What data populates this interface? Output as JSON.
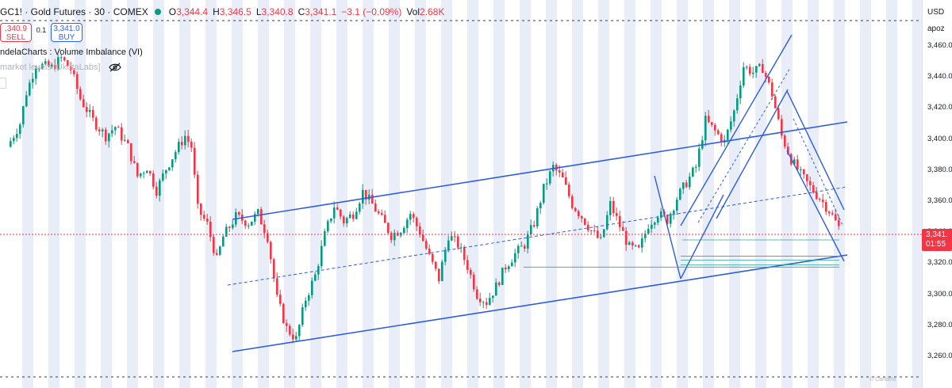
{
  "legend": {
    "symbol": "GC1! · Gold Futures · 30 · COMEX",
    "open_label": "O",
    "open": "3,344.4",
    "high_label": "H",
    "high": "3,346.5",
    "low_label": "L",
    "low": "3,340.8",
    "close_label": "C",
    "close": "3,341.1",
    "change": "−3.1 (−0.09%)",
    "vol_label": "Vol",
    "vol": "2.68K"
  },
  "trade": {
    "sell_price": ",340.9",
    "sell_label": "SELL",
    "spread": "0.1",
    "buy_price": "3,341.0",
    "buy_label": "BUY"
  },
  "indicators": {
    "first": "ndelaCharts : Volume Imbalance (VI)",
    "second": "market levels [UkutaLabs]"
  },
  "price_axis": {
    "currency": "USD",
    "sub_label": "apoz",
    "ticks": [
      "3,460.0",
      "3,440.0",
      "3,420.0",
      "3,400.0",
      "3,380.0",
      "3,360.0",
      "3,340.0",
      "3,320.0",
      "3,300.0",
      "3,280.0",
      "3,260.0"
    ],
    "current_price": "3,341.",
    "countdown": "01:55"
  },
  "watermark": "© Candela",
  "colors": {
    "bull": "#089981",
    "bear": "#f23645",
    "trendline": "#2c5ce0",
    "session_band": "#e8edf8"
  },
  "chart_data": {
    "type": "candlestick",
    "interval": "30",
    "ylim": [
      3250,
      3470
    ],
    "current": 3341.1,
    "close_path": [
      [
        0,
        3395
      ],
      [
        4,
        3410
      ],
      [
        6,
        3430
      ],
      [
        9,
        3448
      ],
      [
        14,
        3446
      ],
      [
        17,
        3452
      ],
      [
        20,
        3445
      ],
      [
        23,
        3426
      ],
      [
        27,
        3412
      ],
      [
        31,
        3402
      ],
      [
        34,
        3408
      ],
      [
        38,
        3395
      ],
      [
        41,
        3376
      ],
      [
        44,
        3382
      ],
      [
        47,
        3367
      ],
      [
        50,
        3381
      ],
      [
        53,
        3392
      ],
      [
        56,
        3402
      ],
      [
        58,
        3395
      ],
      [
        60,
        3355
      ],
      [
        63,
        3345
      ],
      [
        66,
        3322
      ],
      [
        68,
        3337
      ],
      [
        72,
        3350
      ],
      [
        76,
        3346
      ],
      [
        79,
        3352
      ],
      [
        82,
        3337
      ],
      [
        85,
        3297
      ],
      [
        88,
        3278
      ],
      [
        91,
        3271
      ],
      [
        94,
        3297
      ],
      [
        97,
        3312
      ],
      [
        100,
        3338
      ],
      [
        103,
        3357
      ],
      [
        106,
        3347
      ],
      [
        109,
        3352
      ],
      [
        112,
        3366
      ],
      [
        115,
        3358
      ],
      [
        118,
        3348
      ],
      [
        121,
        3338
      ],
      [
        124,
        3342
      ],
      [
        127,
        3352
      ],
      [
        130,
        3340
      ],
      [
        133,
        3324
      ],
      [
        136,
        3310
      ],
      [
        139,
        3338
      ],
      [
        142,
        3332
      ],
      [
        145,
        3318
      ],
      [
        148,
        3300
      ],
      [
        151,
        3295
      ],
      [
        154,
        3305
      ],
      [
        157,
        3318
      ],
      [
        160,
        3326
      ],
      [
        163,
        3332
      ],
      [
        166,
        3346
      ],
      [
        169,
        3368
      ],
      [
        172,
        3382
      ],
      [
        175,
        3374
      ],
      [
        178,
        3358
      ],
      [
        181,
        3350
      ],
      [
        184,
        3341
      ],
      [
        187,
        3334
      ],
      [
        190,
        3358
      ],
      [
        193,
        3344
      ],
      [
        196,
        3330
      ],
      [
        199,
        3328
      ],
      [
        202,
        3345
      ],
      [
        205,
        3352
      ],
      [
        208,
        3348
      ],
      [
        211,
        3362
      ],
      [
        214,
        3372
      ],
      [
        217,
        3382
      ],
      [
        220,
        3412
      ],
      [
        223,
        3405
      ],
      [
        226,
        3398
      ],
      [
        229,
        3418
      ],
      [
        232,
        3447
      ],
      [
        235,
        3443
      ],
      [
        238,
        3446
      ],
      [
        241,
        3429
      ],
      [
        244,
        3402
      ],
      [
        247,
        3387
      ],
      [
        250,
        3377
      ],
      [
        253,
        3369
      ],
      [
        256,
        3362
      ],
      [
        259,
        3354
      ],
      [
        262,
        3343
      ]
    ],
    "levels": [
      3335.0,
      3324.5,
      3322.0,
      3319.0,
      3317.5
    ]
  }
}
